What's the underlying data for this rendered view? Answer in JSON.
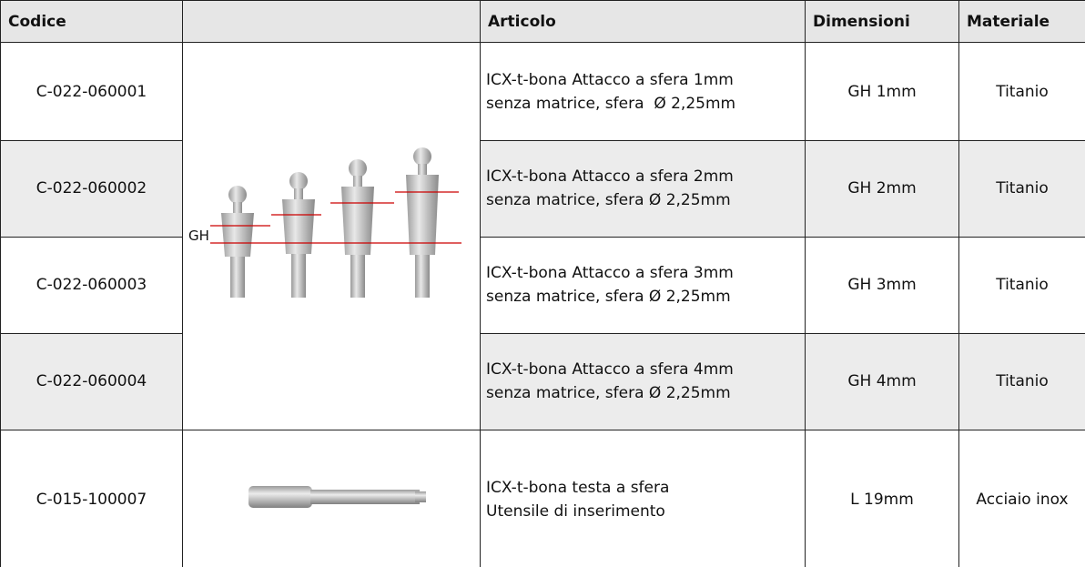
{
  "table": {
    "headers": [
      "Codice",
      "Articolo",
      "Dimensioni",
      "Materiale"
    ],
    "image_label": "GH",
    "rows": [
      {
        "codice": "C-022-060001",
        "articolo": [
          "ICX-t-bona Attacco a sfera 1mm",
          "senza matrice, sfera  Ø 2,25mm"
        ],
        "dimensioni": "GH 1mm",
        "materiale": "Titanio"
      },
      {
        "codice": "C-022-060002",
        "articolo": [
          "ICX-t-bona Attacco a sfera 2mm",
          "senza matrice, sfera Ø 2,25mm"
        ],
        "dimensioni": "GH 2mm",
        "materiale": "Titanio"
      },
      {
        "codice": "C-022-060003",
        "articolo": [
          "ICX-t-bona Attacco a sfera 3mm",
          "senza matrice, sfera Ø 2,25mm"
        ],
        "dimensioni": "GH 3mm",
        "materiale": "Titanio"
      },
      {
        "codice": "C-022-060004",
        "articolo": [
          "ICX-t-bona Attacco a sfera 4mm",
          "senza matrice, sfera Ø 2,25mm"
        ],
        "dimensioni": "GH 4mm",
        "materiale": "Titanio"
      },
      {
        "codice": "C-015-100007",
        "articolo": [
          "ICX-t-bona testa a sfera",
          "Utensile di inserimento"
        ],
        "dimensioni": "L 19mm",
        "materiale": "Acciaio inox"
      }
    ]
  }
}
